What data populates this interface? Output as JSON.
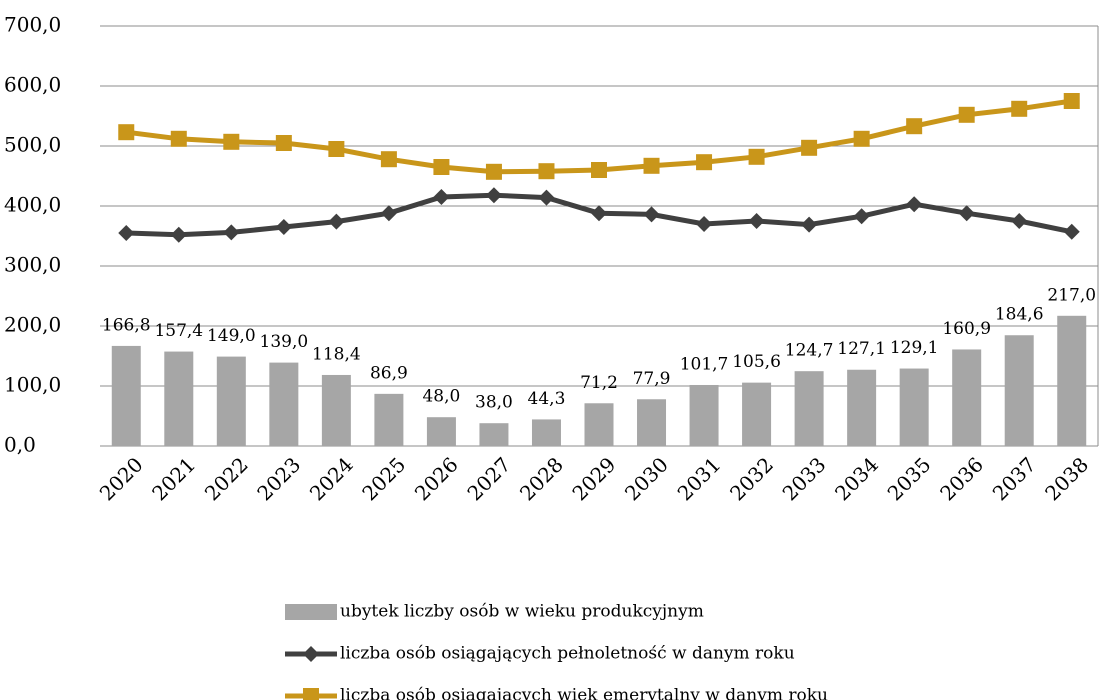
{
  "chart_data": {
    "type": "bar_line",
    "categories": [
      "2020",
      "2021",
      "2022",
      "2023",
      "2024",
      "2025",
      "2026",
      "2027",
      "2028",
      "2029",
      "2030",
      "2031",
      "2032",
      "2033",
      "2034",
      "2035",
      "2036",
      "2037",
      "2038"
    ],
    "series": [
      {
        "name": "ubytek liczby osób w wieku produkcyjnym",
        "type": "bar",
        "color": "#a6a6a6",
        "values": [
          166.8,
          157.4,
          149.0,
          139.0,
          118.4,
          86.9,
          48.0,
          38.0,
          44.3,
          71.2,
          77.9,
          101.7,
          105.6,
          124.7,
          127.1,
          129.1,
          160.9,
          184.6,
          217.0
        ],
        "value_labels": [
          "166,8",
          "157,4",
          "149,0",
          "139,0",
          "118,4",
          "86,9",
          "48,0",
          "38,0",
          "44,3",
          "71,2",
          "77,9",
          "101,7",
          "105,6",
          "124,7",
          "127,1",
          "129,1",
          "160,9",
          "184,6",
          "217,0"
        ]
      },
      {
        "name": "liczba osób osiągających pełnoletność w danym roku",
        "type": "line",
        "marker": "diamond",
        "color": "#404040",
        "values": [
          355,
          352,
          356,
          365,
          374,
          388,
          415,
          418,
          414,
          388,
          386,
          370,
          375,
          369,
          383,
          403,
          388,
          375,
          357
        ]
      },
      {
        "name": "liczba osób osiągających wiek emerytalny w danym roku",
        "type": "line",
        "marker": "square",
        "color": "#c9961a",
        "values": [
          523,
          512,
          507,
          505,
          495,
          478,
          465,
          457,
          458,
          460,
          467,
          473,
          482,
          497,
          512,
          533,
          552,
          562,
          575
        ]
      }
    ],
    "ylim": [
      0,
      700
    ],
    "yticks": [
      {
        "value": 0,
        "label": "0,0"
      },
      {
        "value": 100,
        "label": "100,0"
      },
      {
        "value": 200,
        "label": "200,0"
      },
      {
        "value": 300,
        "label": "300,0"
      },
      {
        "value": 400,
        "label": "400,0"
      },
      {
        "value": 500,
        "label": "500,0"
      },
      {
        "value": 600,
        "label": "600,0"
      },
      {
        "value": 700,
        "label": "700,0"
      }
    ],
    "grid": true,
    "legend": "bottom"
  }
}
